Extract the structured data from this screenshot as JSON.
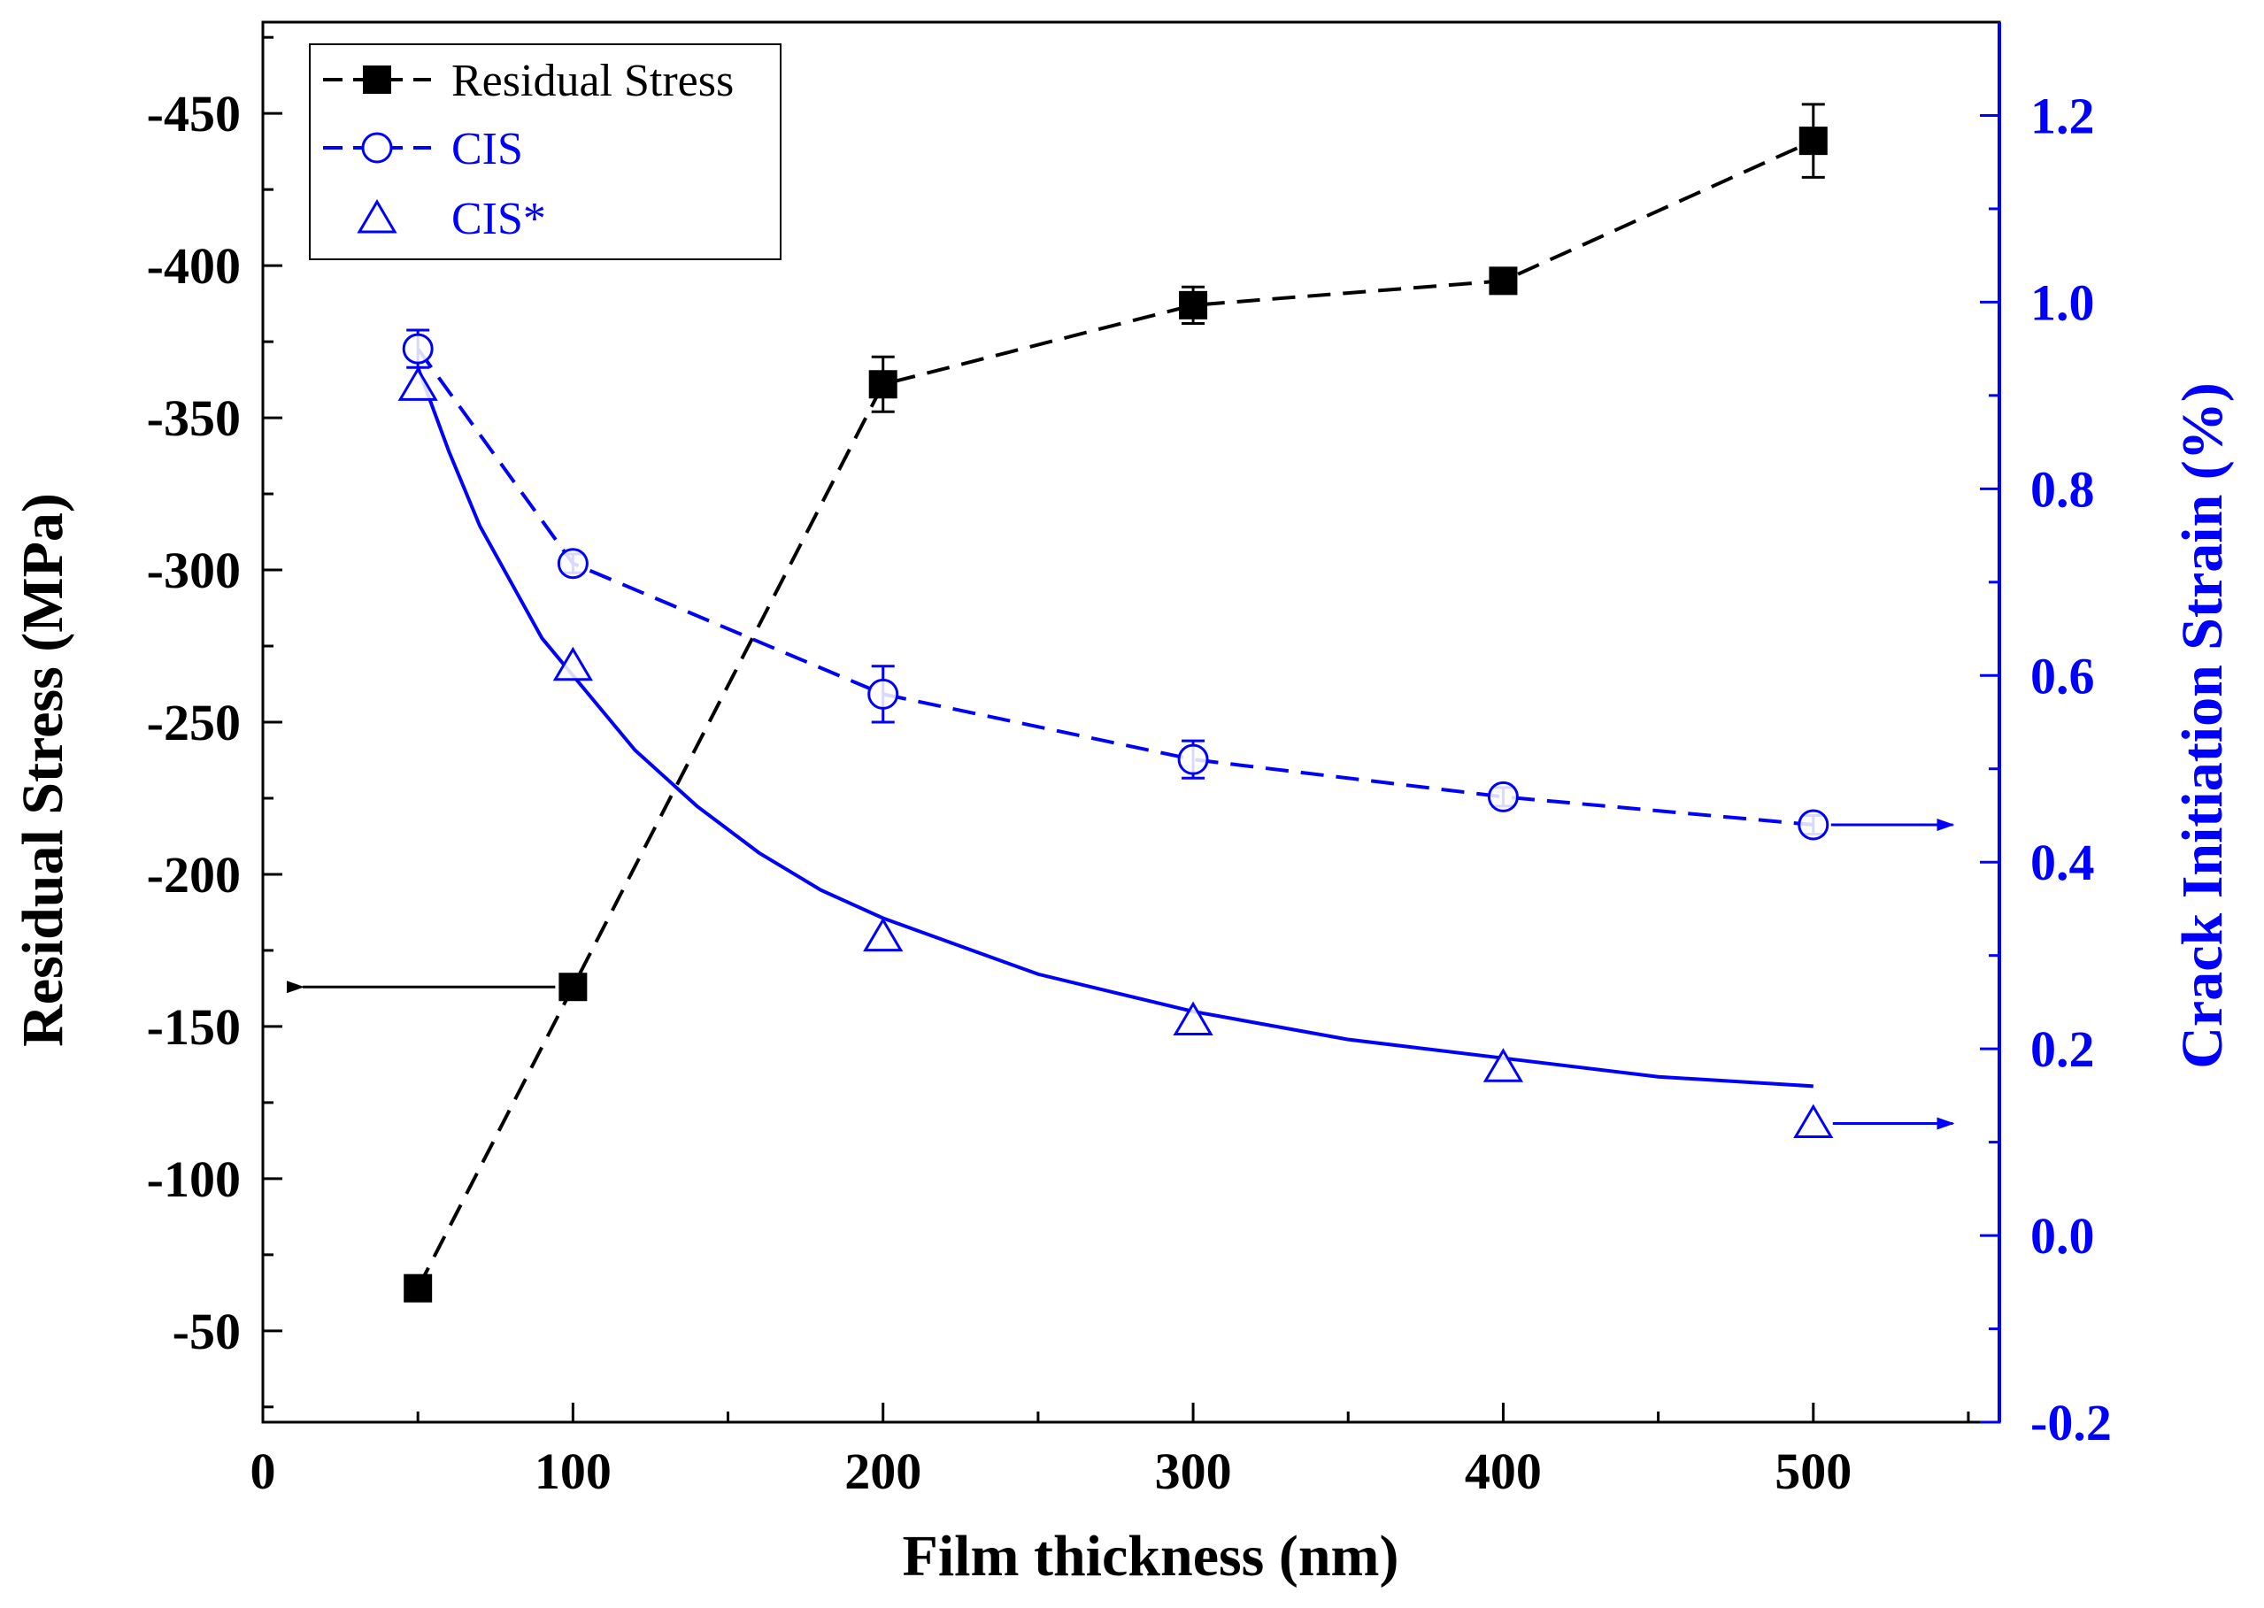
{
  "chart_data": {
    "type": "line",
    "title": "",
    "xlabel": "Film thickness (nm)",
    "ylabel_left": "Residual Stress (MPa)",
    "ylabel_right": "Crack Initiation Strain (%)",
    "xlim": [
      0,
      560
    ],
    "ylim_left": [
      -20,
      -480
    ],
    "ylim_right": [
      -0.2,
      1.3
    ],
    "x_ticks": [
      0,
      100,
      200,
      300,
      400,
      500
    ],
    "x_tick_labels": [
      "0",
      "100",
      "200",
      "300",
      "400",
      "500"
    ],
    "y_left_ticks": [
      -50,
      -100,
      -150,
      -200,
      -250,
      -300,
      -350,
      -400,
      -450
    ],
    "y_left_tick_labels": [
      "-50",
      "-100",
      "-150",
      "-200",
      "-250",
      "-300",
      "-350",
      "-400",
      "-450"
    ],
    "y_right_ticks": [
      -0.2,
      0.0,
      0.2,
      0.4,
      0.6,
      0.8,
      1.0,
      1.2
    ],
    "y_right_tick_labels": [
      "-0.2",
      "0.0",
      "0.2",
      "0.4",
      "0.6",
      "0.8",
      "1.0",
      "1.2"
    ],
    "legend_position": "top-left",
    "series": [
      {
        "name": "Residual Stress",
        "axis": "left",
        "marker": "filled-square",
        "line": "dashed",
        "color": "#000000",
        "x": [
          50,
          100,
          200,
          300,
          400,
          500
        ],
        "values": [
          -64,
          -163,
          -361,
          -387,
          -395,
          -441
        ],
        "errors": [
          0,
          0,
          9,
          6,
          3,
          12
        ]
      },
      {
        "name": "CIS",
        "axis": "right",
        "marker": "open-circle",
        "line": "dashed",
        "color": "#0000ff",
        "x": [
          50,
          100,
          200,
          300,
          400,
          500
        ],
        "values": [
          0.95,
          0.72,
          0.58,
          0.51,
          0.47,
          0.44
        ],
        "errors": [
          0.02,
          0.01,
          0.03,
          0.02,
          0.01,
          0.01
        ]
      },
      {
        "name": "CIS*",
        "axis": "right",
        "marker": "open-triangle",
        "line": "none",
        "color": "#0000ff",
        "x": [
          50,
          100,
          200,
          300,
          400,
          500
        ],
        "values": [
          0.91,
          0.61,
          0.32,
          0.23,
          0.18,
          0.12
        ]
      }
    ],
    "fit_curve": {
      "for_series": "CIS*",
      "axis": "right",
      "color": "#0000ff",
      "x": [
        50,
        60,
        70,
        80,
        90,
        100,
        120,
        140,
        160,
        180,
        200,
        250,
        300,
        350,
        400,
        450,
        500
      ],
      "values": [
        0.93,
        0.84,
        0.76,
        0.7,
        0.64,
        0.6,
        0.52,
        0.46,
        0.41,
        0.37,
        0.34,
        0.28,
        0.24,
        0.21,
        0.19,
        0.17,
        0.16
      ]
    },
    "annotations": [
      {
        "type": "arrow",
        "from_series": "Residual Stress",
        "at_x": 100,
        "direction": "left",
        "meaning": "left axis"
      },
      {
        "type": "arrow",
        "from_series": "CIS",
        "at_x": 500,
        "direction": "right",
        "meaning": "right axis"
      },
      {
        "type": "arrow",
        "from_series": "CIS*",
        "at_x": 500,
        "direction": "right",
        "meaning": "right axis"
      }
    ]
  }
}
